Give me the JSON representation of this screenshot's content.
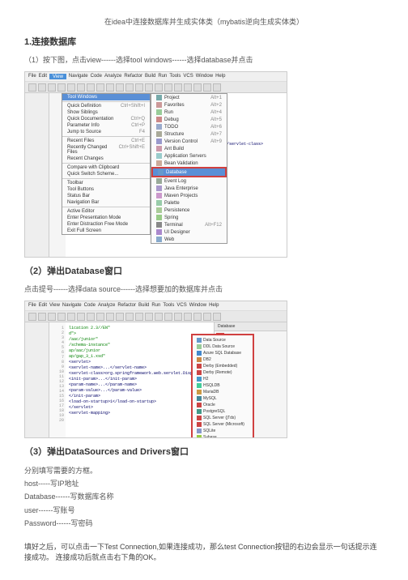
{
  "top_description": "在idea中连接数据库并生成实体类（mybatis逆向生成实体类）",
  "section1": {
    "title": "1.连接数据库",
    "step1_desc": "（1）按下图，点击view------选择tool windows------选择database并点击"
  },
  "ide": {
    "menu_items": [
      "File",
      "Edit",
      "View",
      "Navigate",
      "Code",
      "Analyze",
      "Refactor",
      "Build",
      "Run",
      "Tools",
      "VCS",
      "Window",
      "Help"
    ],
    "dropdown": {
      "items": [
        {
          "label": "Tool Windows",
          "shortcut": "",
          "highlighted": true
        },
        {
          "label": "Quick Definition",
          "shortcut": "Ctrl+Shift+I"
        },
        {
          "label": "Show Siblings",
          "shortcut": ""
        },
        {
          "label": "Quick Documentation",
          "shortcut": "Ctrl+Q"
        },
        {
          "label": "Parameter Info",
          "shortcut": "Ctrl+P"
        },
        {
          "label": "Jump to Source",
          "shortcut": "F4"
        },
        {
          "label": "Recent Files",
          "shortcut": "Ctrl+E"
        },
        {
          "label": "Recently Changed Files",
          "shortcut": "Ctrl+Shift+E"
        },
        {
          "label": "Recent Changes",
          "shortcut": ""
        },
        {
          "label": "Compare with Clipboard",
          "shortcut": ""
        },
        {
          "label": "Quick Switch Scheme...",
          "shortcut": ""
        },
        {
          "label": "Toolbar",
          "shortcut": ""
        },
        {
          "label": "Tool Buttons",
          "shortcut": ""
        },
        {
          "label": "Status Bar",
          "shortcut": ""
        },
        {
          "label": "Navigation Bar",
          "shortcut": ""
        },
        {
          "label": "Active Editor",
          "shortcut": ""
        },
        {
          "label": "Enter Presentation Mode",
          "shortcut": ""
        },
        {
          "label": "Enter Distraction Free Mode",
          "shortcut": ""
        },
        {
          "label": "Exit Full Screen",
          "shortcut": ""
        }
      ]
    },
    "submenu": {
      "items": [
        {
          "label": "Project",
          "shortcut": "Alt+1",
          "color": "#7aa"
        },
        {
          "label": "Favorites",
          "shortcut": "Alt+2",
          "color": "#c99"
        },
        {
          "label": "Run",
          "shortcut": "Alt+4",
          "color": "#9c9"
        },
        {
          "label": "Debug",
          "shortcut": "Alt+5",
          "color": "#c88"
        },
        {
          "label": "TODO",
          "shortcut": "Alt+6",
          "color": "#9ac"
        },
        {
          "label": "Structure",
          "shortcut": "Alt+7",
          "color": "#aa9"
        },
        {
          "label": "Version Control",
          "shortcut": "Alt+9",
          "color": "#99c"
        },
        {
          "label": "Ant Build",
          "shortcut": "",
          "color": "#c9a"
        },
        {
          "label": "Application Servers",
          "shortcut": "",
          "color": "#9cc"
        },
        {
          "label": "Bean Validation",
          "shortcut": "",
          "color": "#ca9"
        },
        {
          "label": "Database",
          "shortcut": "",
          "color": "#69c",
          "highlighted": true
        },
        {
          "label": "Event Log",
          "shortcut": "",
          "color": "#9a9"
        },
        {
          "label": "Java Enterprise",
          "shortcut": "",
          "color": "#a9c"
        },
        {
          "label": "Maven Projects",
          "shortcut": "",
          "color": "#c9c"
        },
        {
          "label": "Palette",
          "shortcut": "",
          "color": "#9ca"
        },
        {
          "label": "Persistence",
          "shortcut": "",
          "color": "#ac9"
        },
        {
          "label": "Spring",
          "shortcut": "",
          "color": "#9c8"
        },
        {
          "label": "Terminal",
          "shortcut": "Alt+F12",
          "color": "#888"
        },
        {
          "label": "UI Designer",
          "shortcut": "",
          "color": "#a8c"
        },
        {
          "label": "Web",
          "shortcut": "",
          "color": "#8ac"
        }
      ]
    },
    "code_lines": [
      "lication 2.3//EN\"",
      "d\">",
      "/aac/junior\"",
      "/schema-instance\"",
      "ap/aac/junior",
      "ap/gap_3_1.xsd\"",
      "<servlet>",
      "  <servlet-name>...</servlet-name>",
      "  <servlet-class>org.springframework.web.servlet.DispatcherServlet</servlet-class>",
      "  <init-param>...</init-param>",
      "    <param-name>...</param-name>",
      "    <param-value>...</param-value>",
      "  </init-param>",
      "  <load-on-startup>1</load-on-startup>",
      "</servlet>",
      "",
      "<!--打开是不可以访问Spring Web Mvc的组件-->",
      "<servlet-mapping>"
    ]
  },
  "section2": {
    "title": "（2）弹出Database窗口",
    "desc": "点击提号------选择data source------选择想要加的数据库并点击"
  },
  "ide2": {
    "db_sources": [
      {
        "label": "Data Source",
        "color": "#69c"
      },
      {
        "label": "DDL Data Source",
        "color": "#9c9"
      },
      {
        "label": "Azure SQL Database",
        "color": "#48c"
      },
      {
        "label": "DB2",
        "color": "#c84"
      },
      {
        "label": "Derby (Embedded)",
        "color": "#c44"
      },
      {
        "label": "Derby (Remote)",
        "color": "#c44"
      },
      {
        "label": "H2",
        "color": "#49c"
      },
      {
        "label": "HSQLDB",
        "color": "#4c9"
      },
      {
        "label": "MariaDB",
        "color": "#c94"
      },
      {
        "label": "MySQL",
        "color": "#489"
      },
      {
        "label": "Oracle",
        "color": "#c44"
      },
      {
        "label": "PostgreSQL",
        "color": "#498"
      },
      {
        "label": "SQL Server (jTds)",
        "color": "#c44"
      },
      {
        "label": "SQL Server (Microsoft)",
        "color": "#c44"
      },
      {
        "label": "SQLite",
        "color": "#89c"
      },
      {
        "label": "Sybase",
        "color": "#9c4"
      }
    ]
  },
  "section3": {
    "title": "（3）弹出DataSources and Drivers窗口",
    "desc_header": "分别填写需要的方框。",
    "host_desc": "host-----写IP地址",
    "database_desc": "Database------写数据库名称",
    "user_desc": "user------写账号",
    "password_desc": "Password------写密码"
  },
  "bottom_note": "填好之后，可以点击一下Test Connection,如果连接成功，那么test Connection按钮的右边会显示一句话提示连接成功。 连接成功后就点击右下角的OK。"
}
